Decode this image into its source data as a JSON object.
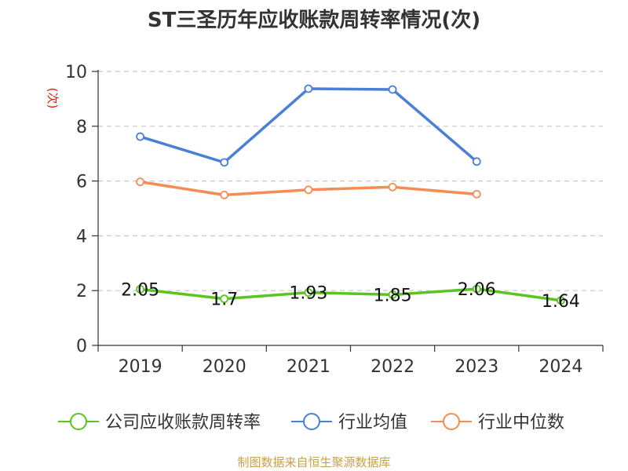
{
  "chart_data": {
    "type": "line",
    "title": "ST三圣历年应收账款周转率情况(次)",
    "y_unit": "(次)",
    "categories": [
      "2019",
      "2020",
      "2021",
      "2022",
      "2023",
      "2024"
    ],
    "ylim": [
      0,
      10
    ],
    "y_ticks": [
      0,
      2,
      4,
      6,
      8,
      10
    ],
    "grid": "horizontal-dashed",
    "legend_position": "bottom",
    "series": [
      {
        "name": "公司应收账款周转率",
        "color": "#5cc421",
        "values": [
          2.05,
          1.7,
          1.93,
          1.85,
          2.06,
          1.64
        ],
        "labels": [
          "2.05",
          "1.7",
          "1.93",
          "1.85",
          "2.06",
          "1.64"
        ]
      },
      {
        "name": "行业均值",
        "color": "#4a7fd6",
        "values": [
          7.62,
          6.68,
          9.37,
          9.34,
          6.71,
          null
        ]
      },
      {
        "name": "行业中位数",
        "color": "#f58b55",
        "values": [
          5.97,
          5.49,
          5.68,
          5.78,
          5.52,
          null
        ]
      }
    ],
    "source": "制图数据来自恒生聚源数据库"
  }
}
